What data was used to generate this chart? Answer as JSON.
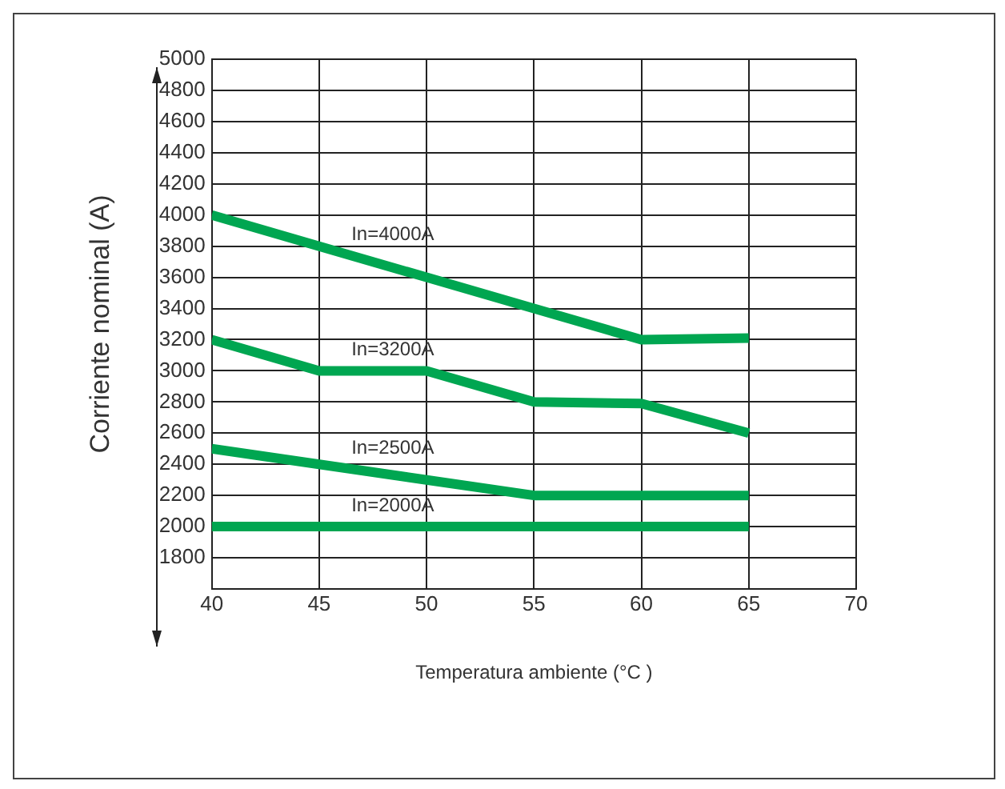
{
  "chart_data": {
    "type": "line",
    "xlabel": "Temperatura ambiente (°C )",
    "ylabel": "Corriente nominal (A)",
    "x": [
      40,
      45,
      50,
      55,
      60,
      65
    ],
    "series": [
      {
        "name": "In=4000A",
        "color": "#00a651",
        "values": [
          4000,
          3800,
          3600,
          3400,
          3200,
          3210
        ]
      },
      {
        "name": "In=3200A",
        "color": "#00a651",
        "values": [
          3200,
          3000,
          3000,
          2800,
          2790,
          2600
        ]
      },
      {
        "name": "In=2500A",
        "color": "#00a651",
        "values": [
          2500,
          2400,
          2300,
          2200,
          2200,
          2200
        ]
      },
      {
        "name": "In=2000A",
        "color": "#00a651",
        "values": [
          2000,
          2000,
          2000,
          2000,
          2000,
          2000
        ]
      }
    ],
    "xlim": [
      40,
      70
    ],
    "xticks": [
      40,
      45,
      50,
      55,
      60,
      65,
      70
    ],
    "ylim": [
      1600,
      5000
    ],
    "yticks": [
      1800,
      2000,
      2200,
      2400,
      2600,
      2800,
      3000,
      3200,
      3400,
      3600,
      3800,
      4000,
      4200,
      4400,
      4600,
      4800,
      5000
    ],
    "grid": true,
    "legend": false,
    "marker": "none",
    "line_style": "solid"
  }
}
